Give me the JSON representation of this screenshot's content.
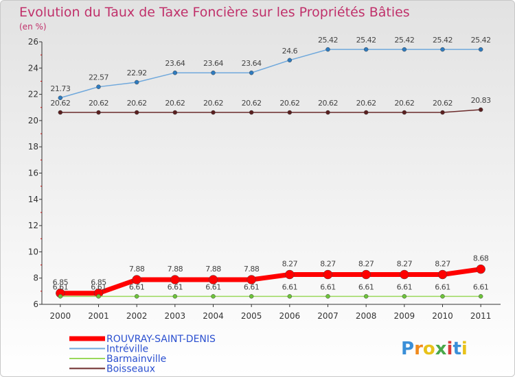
{
  "chart_data": {
    "type": "line",
    "title": "Evolution du Taux de Taxe Foncière sur les Propriétés Bâties",
    "subtitle": "(en %)",
    "xlabel": "",
    "ylabel": "",
    "ylim": [
      6,
      26
    ],
    "yticks": [
      "6",
      "8",
      "10",
      "12",
      "14",
      "16",
      "18",
      "20",
      "22",
      "24",
      "26"
    ],
    "x": [
      "2000",
      "2001",
      "2002",
      "2003",
      "2004",
      "2005",
      "2006",
      "2007",
      "2008",
      "2009",
      "2010",
      "2011"
    ],
    "legend_position": "bottom-left",
    "series": [
      {
        "name": "Intréville",
        "color": "#6fa8dc",
        "marker_color": "#2e7bbf",
        "values": [
          21.73,
          22.57,
          22.92,
          23.64,
          23.64,
          23.64,
          24.6,
          25.42,
          25.42,
          25.42,
          25.42,
          25.42
        ],
        "labels": [
          "21.73",
          "22.57",
          "22.92",
          "23.64",
          "23.64",
          "23.64",
          "24.6",
          "25.42",
          "25.42",
          "25.42",
          "25.42",
          "25.42"
        ]
      },
      {
        "name": "Boisseaux",
        "color": "#6b2a2a",
        "marker_color": "#5a1f1f",
        "values": [
          20.62,
          20.62,
          20.62,
          20.62,
          20.62,
          20.62,
          20.62,
          20.62,
          20.62,
          20.62,
          20.62,
          20.83
        ],
        "labels": [
          "20.62",
          "20.62",
          "20.62",
          "20.62",
          "20.62",
          "20.62",
          "20.62",
          "20.62",
          "20.62",
          "20.62",
          "20.62",
          "20.83"
        ]
      },
      {
        "name": "ROUVRAY-SAINT-DENIS",
        "color": "#ff0000",
        "marker_color": "#ff0000",
        "values": [
          6.85,
          6.85,
          7.88,
          7.88,
          7.88,
          7.88,
          8.27,
          8.27,
          8.27,
          8.27,
          8.27,
          8.68
        ],
        "labels": [
          "6.85",
          "6.85",
          "7.88",
          "7.88",
          "7.88",
          "7.88",
          "8.27",
          "8.27",
          "8.27",
          "8.27",
          "8.27",
          "8.68"
        ]
      },
      {
        "name": "Barmainville",
        "color": "#9ad85a",
        "marker_color": "#6cc23a",
        "values": [
          6.61,
          6.61,
          6.61,
          6.61,
          6.61,
          6.61,
          6.61,
          6.61,
          6.61,
          6.61,
          6.61,
          6.61
        ],
        "labels": [
          "6.61",
          "6.61",
          "6.61",
          "6.61",
          "6.61",
          "6.61",
          "6.61",
          "6.61",
          "6.61",
          "6.61",
          "6.61",
          "6.61"
        ]
      }
    ],
    "legend_order": [
      "ROUVRAY-SAINT-DENIS",
      "Intréville",
      "Barmainville",
      "Boisseaux"
    ]
  },
  "logo": {
    "letters": [
      "P",
      "r",
      "o",
      "x",
      "i",
      "t",
      "i"
    ],
    "colors": [
      "#3a8fd8",
      "#f08a1c",
      "#e8c21a",
      "#4aa84a",
      "#d83a3a",
      "#3a8fd8",
      "#e8c21a"
    ]
  }
}
